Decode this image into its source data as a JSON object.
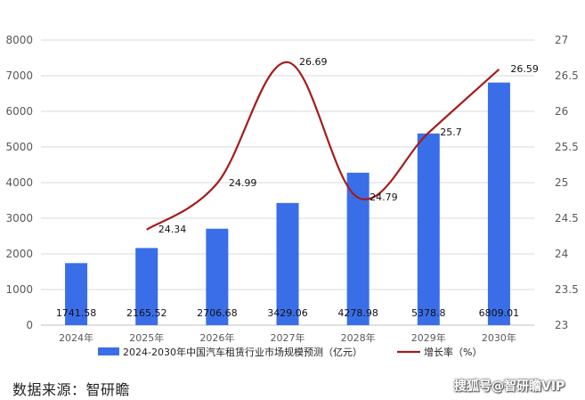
{
  "chart_data": {
    "type": "bar",
    "categories": [
      "2024年",
      "2025年",
      "2026年",
      "2027年",
      "2028年",
      "2029年",
      "2030年"
    ],
    "series": [
      {
        "name": "2024-2030年中国汽车租赁行业市场规模预测（亿元）",
        "type": "bar",
        "axis": "left",
        "color": "#3a6ee8",
        "values": [
          1741.58,
          2165.52,
          2706.68,
          3429.06,
          4278.98,
          5378.8,
          6809.01
        ],
        "labels": [
          "1741.58",
          "2165.52",
          "2706.68",
          "3429.06",
          "4278.98",
          "5378.8",
          "6809.01"
        ]
      },
      {
        "name": "增长率（%）",
        "type": "line",
        "axis": "right",
        "color": "#a51c1c",
        "values": [
          null,
          24.34,
          24.99,
          26.69,
          24.79,
          25.7,
          26.59
        ],
        "labels": [
          "",
          "24.34",
          "24.99",
          "26.69",
          "24.79",
          "25.7",
          "26.59"
        ]
      }
    ],
    "y_left": {
      "min": 0,
      "max": 8000,
      "ticks": [
        "0",
        "1000",
        "2000",
        "3000",
        "4000",
        "5000",
        "6000",
        "7000",
        "8000"
      ]
    },
    "y_right": {
      "min": 23,
      "max": 27,
      "ticks": [
        "23",
        "23.5",
        "24",
        "24.5",
        "25",
        "25.5",
        "26",
        "26.5",
        "27"
      ]
    },
    "grid": true,
    "legend_position": "bottom"
  },
  "source": "数据来源：智研瞻",
  "watermark": "搜狐号@智研瞻VIP"
}
